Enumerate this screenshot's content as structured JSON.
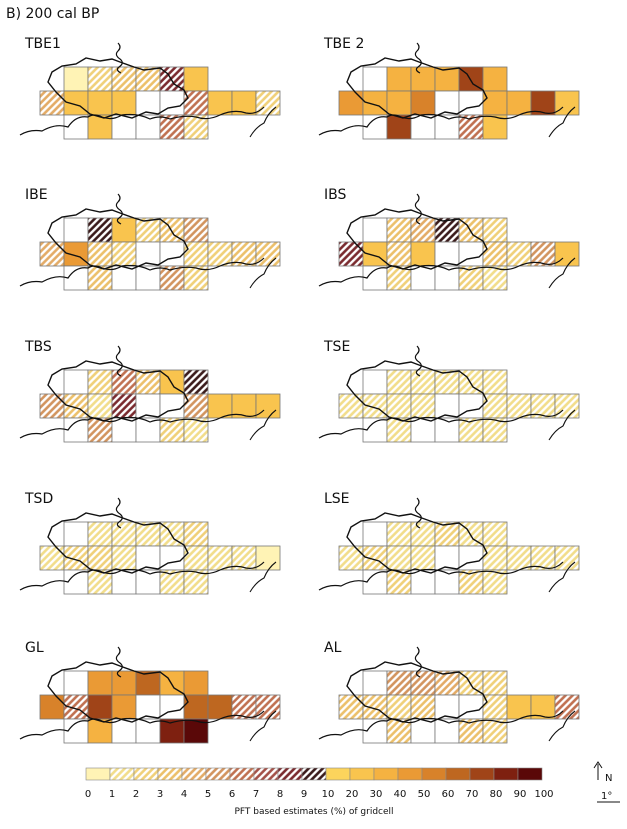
{
  "panel_title": "B) 200 cal BP",
  "legend": {
    "caption": "PFT based estimates (%) of gridcell",
    "tick_labels": [
      "0",
      "1",
      "2",
      "3",
      "4",
      "5",
      "6",
      "7",
      "8",
      "9",
      "10",
      "20",
      "30",
      "40",
      "50",
      "60",
      "70",
      "80",
      "90",
      "100"
    ],
    "classes": [
      {
        "fill": "#fff3b5",
        "hatch": false
      },
      {
        "fill": "#ffffff",
        "hatch": true,
        "hatch_color": "#f2dd8a"
      },
      {
        "fill": "#ffffff",
        "hatch": true,
        "hatch_color": "#f0d078"
      },
      {
        "fill": "#ffffff",
        "hatch": true,
        "hatch_color": "#ecc06a"
      },
      {
        "fill": "#ffffff",
        "hatch": true,
        "hatch_color": "#e3ab66"
      },
      {
        "fill": "#ffffff",
        "hatch": true,
        "hatch_color": "#d2945e"
      },
      {
        "fill": "#ffffff",
        "hatch": true,
        "hatch_color": "#c07050"
      },
      {
        "fill": "#ffffff",
        "hatch": true,
        "hatch_color": "#a45148"
      },
      {
        "fill": "#ffffff",
        "hatch": true,
        "hatch_color": "#7a2a2e"
      },
      {
        "fill": "#ffffff",
        "hatch": true,
        "hatch_color": "#3a1a1a"
      },
      {
        "fill": "#fcd45c",
        "hatch": false
      },
      {
        "fill": "#f9c44e",
        "hatch": false
      },
      {
        "fill": "#f5b241",
        "hatch": false
      },
      {
        "fill": "#ea9a35",
        "hatch": false
      },
      {
        "fill": "#d8822a",
        "hatch": false
      },
      {
        "fill": "#be6720",
        "hatch": false
      },
      {
        "fill": "#a04418",
        "hatch": false
      },
      {
        "fill": "#7e2010",
        "hatch": false
      },
      {
        "fill": "#5a0808",
        "hatch": false
      }
    ]
  },
  "north_label": "N",
  "scale_label": "1°",
  "maps": [
    {
      "title": "TBE1",
      "cells": [
        [
          0,
          2,
          3,
          3,
          8,
          11,
          -1
        ],
        [
          4,
          11,
          11,
          11,
          -1,
          -1,
          6,
          11,
          11,
          2
        ],
        [
          -1,
          11,
          -1,
          -1,
          6,
          2
        ]
      ]
    },
    {
      "title": "TBE 2",
      "cells": [
        [
          -1,
          12,
          12,
          12,
          16,
          12,
          -1
        ],
        [
          13,
          12,
          12,
          14,
          -1,
          -1,
          12,
          12,
          16,
          11
        ],
        [
          -1,
          16,
          -1,
          -1,
          6,
          11
        ]
      ]
    },
    {
      "title": "IBE",
      "cells": [
        [
          -1,
          9,
          11,
          2,
          3,
          5,
          -1
        ],
        [
          4,
          13,
          3,
          2,
          -1,
          -1,
          2,
          2,
          3,
          3
        ],
        [
          -1,
          3,
          -1,
          -1,
          5,
          2
        ]
      ]
    },
    {
      "title": "IBS",
      "cells": [
        [
          -1,
          3,
          4,
          9,
          3,
          2,
          -1
        ],
        [
          8,
          11,
          3,
          11,
          -1,
          -1,
          3,
          2,
          5,
          11
        ],
        [
          -1,
          2,
          -1,
          -1,
          2,
          1
        ]
      ]
    },
    {
      "title": "TBS",
      "cells": [
        [
          -1,
          2,
          6,
          3,
          11,
          9,
          -1
        ],
        [
          5,
          3,
          1,
          8,
          -1,
          -1,
          5,
          11,
          11,
          11
        ],
        [
          -1,
          5,
          -1,
          -1,
          2,
          1
        ]
      ]
    },
    {
      "title": "TSE",
      "cells": [
        [
          -1,
          1,
          1,
          1,
          1,
          1,
          -1
        ],
        [
          1,
          1,
          1,
          1,
          -1,
          -1,
          1,
          1,
          1,
          1
        ],
        [
          -1,
          1,
          -1,
          -1,
          1,
          1
        ]
      ]
    },
    {
      "title": "TSD",
      "cells": [
        [
          -1,
          1,
          1,
          1,
          1,
          2,
          -1
        ],
        [
          1,
          2,
          2,
          1,
          -1,
          -1,
          1,
          1,
          1,
          0
        ],
        [
          -1,
          1,
          -1,
          -1,
          1,
          1
        ]
      ]
    },
    {
      "title": "LSE",
      "cells": [
        [
          -1,
          1,
          1,
          2,
          1,
          1,
          -1
        ],
        [
          1,
          2,
          1,
          1,
          -1,
          -1,
          1,
          1,
          1,
          1
        ],
        [
          -1,
          2,
          -1,
          -1,
          2,
          1
        ]
      ]
    },
    {
      "title": "GL",
      "cells": [
        [
          -1,
          13,
          13,
          15,
          12,
          13,
          -1
        ],
        [
          14,
          6,
          16,
          13,
          -1,
          -1,
          15,
          15,
          6,
          6
        ],
        [
          -1,
          12,
          -1,
          -1,
          17,
          18
        ]
      ]
    },
    {
      "title": "AL",
      "cells": [
        [
          -1,
          5,
          5,
          4,
          2,
          2,
          -1
        ],
        [
          3,
          3,
          2,
          3,
          -1,
          -1,
          2,
          11,
          11,
          6
        ],
        [
          -1,
          3,
          -1,
          -1,
          3,
          2
        ]
      ]
    }
  ]
}
